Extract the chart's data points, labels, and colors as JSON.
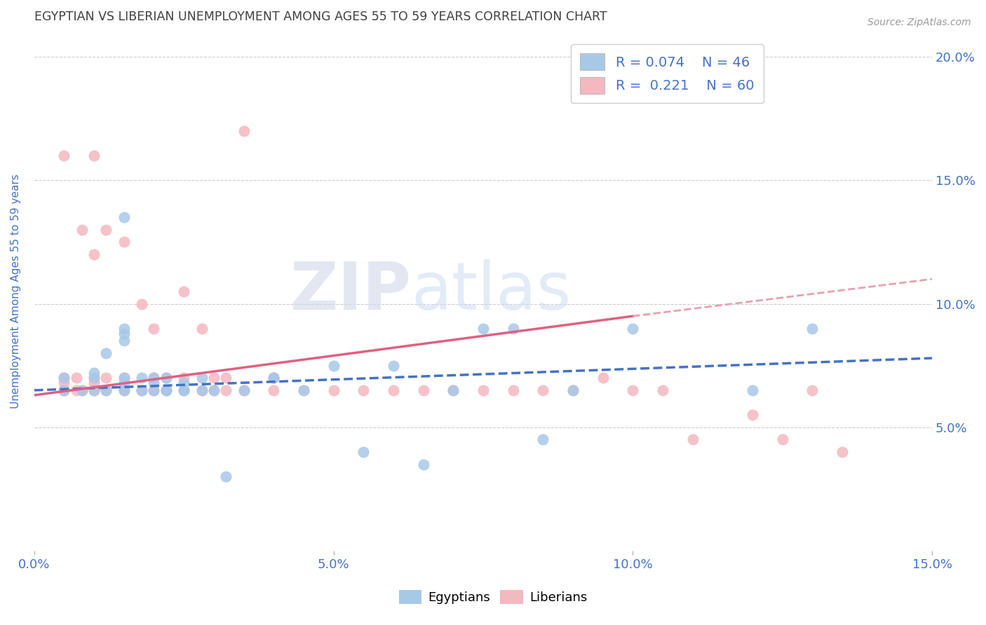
{
  "title": "EGYPTIAN VS LIBERIAN UNEMPLOYMENT AMONG AGES 55 TO 59 YEARS CORRELATION CHART",
  "source": "Source: ZipAtlas.com",
  "ylabel": "Unemployment Among Ages 55 to 59 years",
  "xlim": [
    0.0,
    0.15
  ],
  "ylim": [
    0.0,
    0.21
  ],
  "yticks": [
    0.0,
    0.05,
    0.1,
    0.15,
    0.2
  ],
  "ytick_labels": [
    "",
    "5.0%",
    "10.0%",
    "15.0%",
    "20.0%"
  ],
  "xticks": [
    0.0,
    0.05,
    0.1,
    0.15
  ],
  "xtick_labels": [
    "0.0%",
    "5.0%",
    "10.0%",
    "15.0%"
  ],
  "legend_R1": "R = 0.074",
  "legend_N1": "N = 46",
  "legend_R2": "R =  0.221",
  "legend_N2": "N = 60",
  "egyptian_color": "#a8c8e8",
  "liberian_color": "#f4b8c0",
  "trend_egyptian_color": "#4472c4",
  "trend_liberian_color": "#e06080",
  "trend_liberian_dashed_color": "#e8a0b0",
  "watermark_zip": "ZIP",
  "watermark_atlas": "atlas",
  "background_color": "#ffffff",
  "title_color": "#404040",
  "tick_label_color": "#4472c4",
  "egyptian_x": [
    0.005,
    0.005,
    0.008,
    0.01,
    0.01,
    0.01,
    0.012,
    0.012,
    0.015,
    0.015,
    0.015,
    0.015,
    0.015,
    0.015,
    0.015,
    0.018,
    0.018,
    0.02,
    0.02,
    0.02,
    0.022,
    0.022,
    0.022,
    0.025,
    0.025,
    0.025,
    0.028,
    0.028,
    0.03,
    0.032,
    0.035,
    0.04,
    0.04,
    0.045,
    0.05,
    0.055,
    0.06,
    0.065,
    0.07,
    0.075,
    0.08,
    0.085,
    0.09,
    0.1,
    0.12,
    0.13
  ],
  "egyptian_y": [
    0.065,
    0.07,
    0.065,
    0.065,
    0.07,
    0.072,
    0.065,
    0.08,
    0.065,
    0.068,
    0.07,
    0.085,
    0.088,
    0.09,
    0.135,
    0.065,
    0.07,
    0.065,
    0.068,
    0.07,
    0.065,
    0.065,
    0.07,
    0.065,
    0.068,
    0.065,
    0.065,
    0.07,
    0.065,
    0.03,
    0.065,
    0.07,
    0.07,
    0.065,
    0.075,
    0.04,
    0.075,
    0.035,
    0.065,
    0.09,
    0.09,
    0.045,
    0.065,
    0.09,
    0.065,
    0.09
  ],
  "liberian_x": [
    0.005,
    0.005,
    0.005,
    0.005,
    0.005,
    0.007,
    0.007,
    0.008,
    0.008,
    0.01,
    0.01,
    0.01,
    0.01,
    0.01,
    0.012,
    0.012,
    0.012,
    0.015,
    0.015,
    0.015,
    0.015,
    0.018,
    0.018,
    0.018,
    0.02,
    0.02,
    0.02,
    0.022,
    0.022,
    0.025,
    0.025,
    0.025,
    0.028,
    0.028,
    0.03,
    0.03,
    0.032,
    0.032,
    0.035,
    0.035,
    0.04,
    0.04,
    0.045,
    0.05,
    0.055,
    0.06,
    0.065,
    0.07,
    0.075,
    0.08,
    0.085,
    0.09,
    0.095,
    0.1,
    0.105,
    0.11,
    0.12,
    0.125,
    0.13,
    0.135
  ],
  "liberian_y": [
    0.065,
    0.065,
    0.068,
    0.07,
    0.16,
    0.065,
    0.07,
    0.065,
    0.13,
    0.065,
    0.068,
    0.07,
    0.12,
    0.16,
    0.065,
    0.07,
    0.13,
    0.065,
    0.065,
    0.07,
    0.125,
    0.065,
    0.065,
    0.1,
    0.065,
    0.07,
    0.09,
    0.065,
    0.07,
    0.065,
    0.07,
    0.105,
    0.065,
    0.09,
    0.065,
    0.07,
    0.065,
    0.07,
    0.065,
    0.17,
    0.065,
    0.07,
    0.065,
    0.065,
    0.065,
    0.065,
    0.065,
    0.065,
    0.065,
    0.065,
    0.065,
    0.065,
    0.07,
    0.065,
    0.065,
    0.045,
    0.055,
    0.045,
    0.065,
    0.04
  ],
  "trend_eg_x0": 0.0,
  "trend_eg_x1": 0.15,
  "trend_eg_y0": 0.065,
  "trend_eg_y1": 0.078,
  "trend_lib_solid_x0": 0.0,
  "trend_lib_solid_x1": 0.1,
  "trend_lib_solid_y0": 0.063,
  "trend_lib_solid_y1": 0.095,
  "trend_lib_dash_x0": 0.1,
  "trend_lib_dash_x1": 0.15,
  "trend_lib_dash_y0": 0.095,
  "trend_lib_dash_y1": 0.11
}
